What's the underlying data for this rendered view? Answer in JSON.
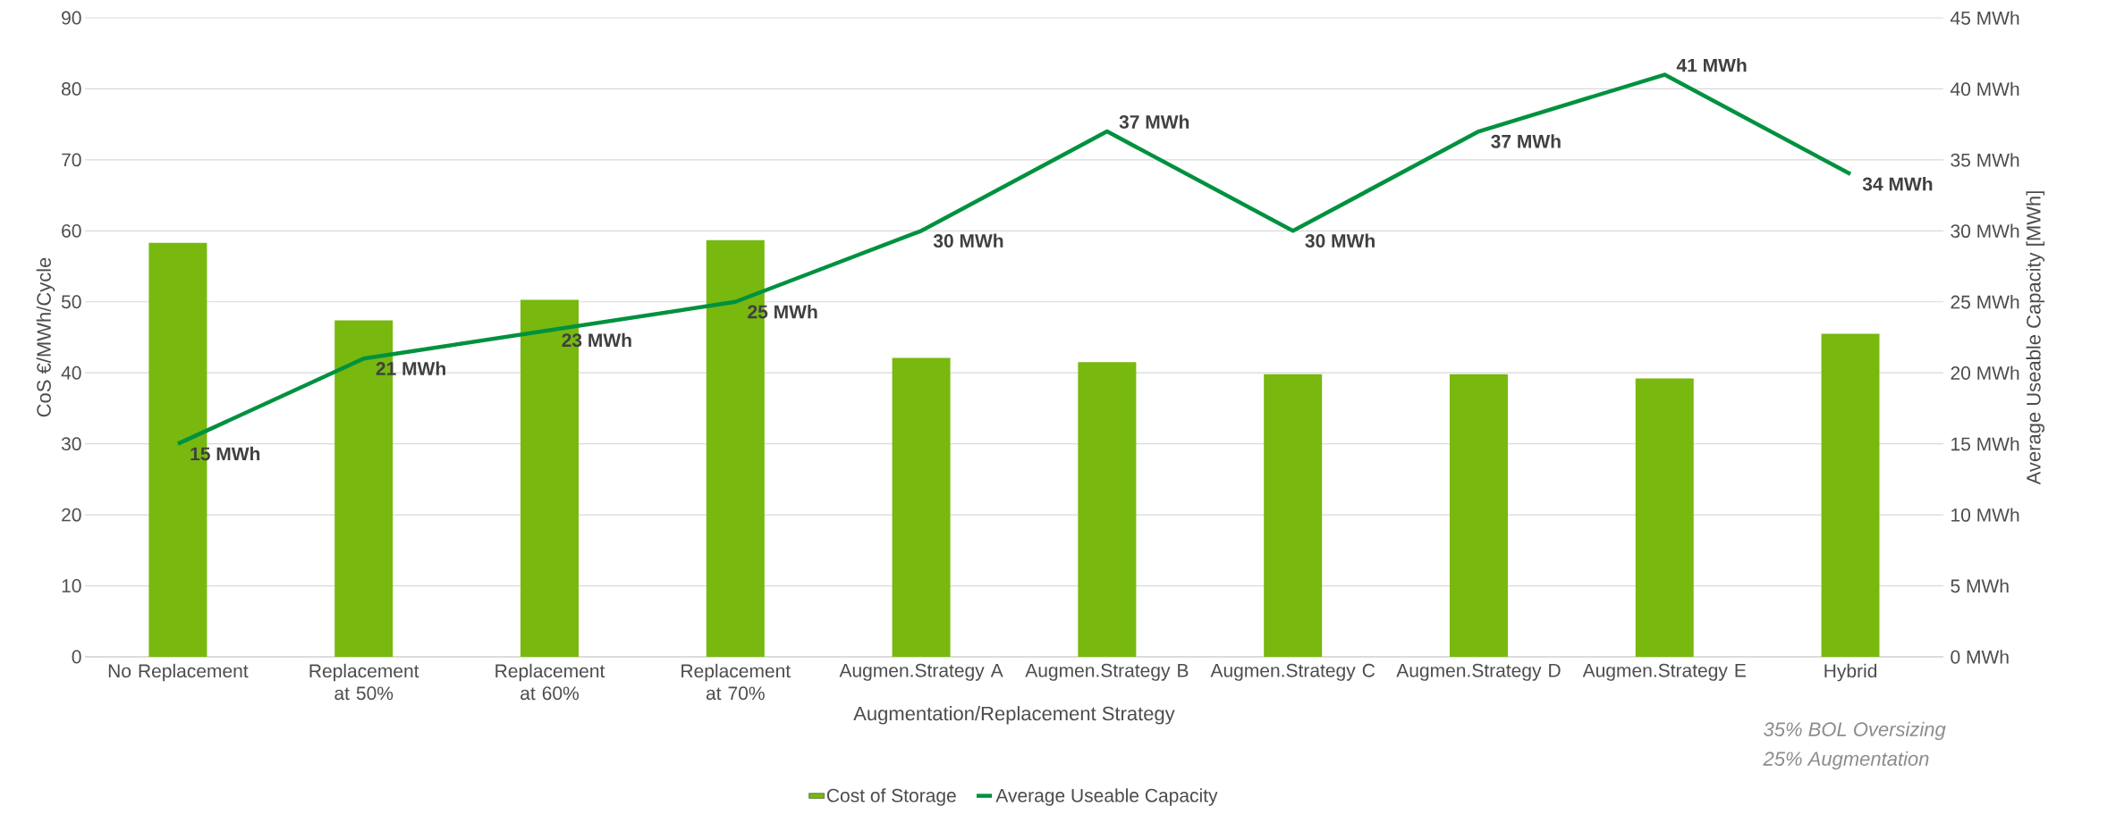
{
  "chart_data": {
    "type": "bar",
    "xlabel": "Augmentation/Replacement Strategy",
    "ylabel": "CoS €/MWh/Cycle",
    "y2label": "Average Useable Capacity [MWh]",
    "categories": [
      "No Replacement",
      "Replacement at 50%",
      "Replacement at 60%",
      "Replacement at 70%",
      "Augmen.Strategy A",
      "Augmen.Strategy B",
      "Augmen.Strategy C",
      "Augmen.Strategy D",
      "Augmen.Strategy E",
      "Hybrid"
    ],
    "series": [
      {
        "name": "Cost of Storage",
        "color": "#78b80f",
        "values": [
          58.3,
          47.4,
          50.3,
          58.7,
          42.1,
          41.5,
          39.8,
          39.8,
          39.2,
          45.5
        ]
      },
      {
        "name": "Average Useable Capacity",
        "type": "line",
        "axis": "y2",
        "color": "#00913f",
        "values": [
          15,
          21,
          23,
          25,
          30,
          37,
          30,
          37,
          41,
          34
        ],
        "value_labels": [
          "15 MWh",
          "21 MWh",
          "23 MWh",
          "25 MWh",
          "30 MWh",
          "37 MWh",
          "30 MWh",
          "37 MWh",
          "41 MWh",
          "34 MWh"
        ]
      }
    ],
    "ylim": [
      0,
      90
    ],
    "yticks": [
      0,
      10,
      20,
      30,
      40,
      50,
      60,
      70,
      80,
      90
    ],
    "y2lim": [
      0,
      45
    ],
    "y2ticks": [
      {
        "value": 0,
        "label": "0 MWh"
      },
      {
        "value": 5,
        "label": "5 MWh"
      },
      {
        "value": 10,
        "label": "10 MWh"
      },
      {
        "value": 15,
        "label": "15 MWh"
      },
      {
        "value": 20,
        "label": "20 MWh"
      },
      {
        "value": 25,
        "label": "25 MWh"
      },
      {
        "value": 30,
        "label": "30 MWh"
      },
      {
        "value": 35,
        "label": "35 MWh"
      },
      {
        "value": 40,
        "label": "40 MWh"
      },
      {
        "value": 45,
        "label": "45 MWh"
      }
    ],
    "grid": "y",
    "legend": "bottom",
    "marker": "none",
    "annotations": [
      "35% BOL Oversizing",
      "25% Augmentation"
    ]
  }
}
